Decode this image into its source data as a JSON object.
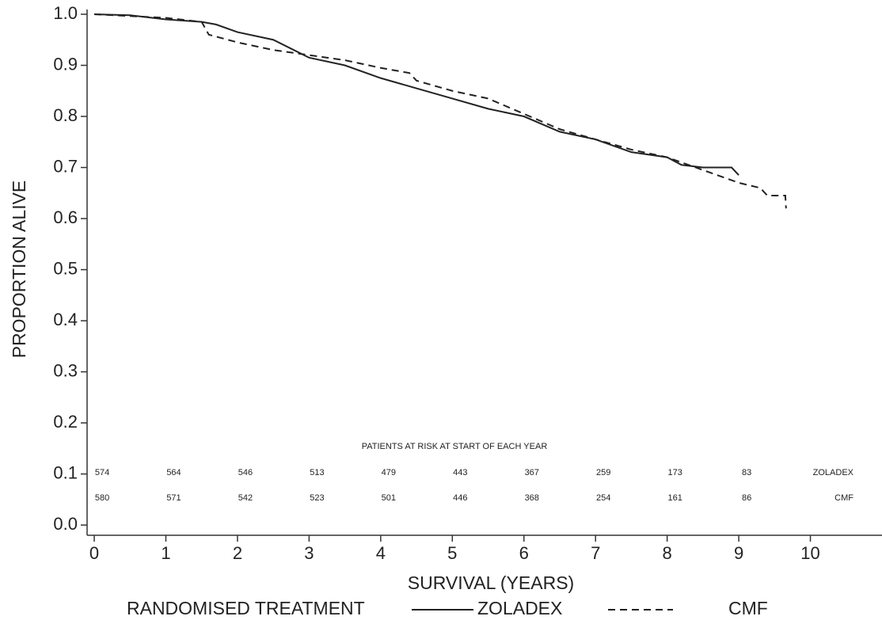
{
  "chart_data": {
    "type": "line",
    "x_label": "SURVIVAL (YEARS)",
    "y_label": "PROPORTION ALIVE",
    "xlim": [
      -0.1,
      11
    ],
    "ylim": [
      -0.02,
      1.0
    ],
    "xticks": [
      0,
      1,
      2,
      3,
      4,
      5,
      6,
      7,
      8,
      9,
      10
    ],
    "yticks": [
      {
        "value": 0,
        "label": "0.0"
      },
      0.1,
      0.2,
      0.3,
      0.4,
      0.5,
      0.6,
      0.7,
      0.8,
      0.9,
      {
        "value": 1,
        "label": "1.0"
      }
    ],
    "legend_title": "RANDOMISED TREATMENT",
    "series": [
      {
        "name": "ZOLADEX",
        "color": "#222222",
        "dashed": false,
        "x": [
          0,
          0.5,
          1,
          1.5,
          1.7,
          2,
          2.5,
          3,
          3.5,
          4,
          4.5,
          5,
          5.5,
          6,
          6.5,
          7,
          7.5,
          8,
          8.2,
          8.5,
          8.9,
          9.0
        ],
        "values": [
          1.0,
          0.998,
          0.99,
          0.985,
          0.98,
          0.965,
          0.95,
          0.915,
          0.9,
          0.875,
          0.855,
          0.835,
          0.815,
          0.8,
          0.77,
          0.755,
          0.73,
          0.72,
          0.705,
          0.7,
          0.7,
          0.685
        ]
      },
      {
        "name": "CMF",
        "color": "#222222",
        "dashed": true,
        "x": [
          0,
          1,
          1.5,
          1.6,
          2,
          2.5,
          3,
          3.5,
          4,
          4.4,
          4.5,
          5,
          5.5,
          6,
          6.5,
          7,
          7.5,
          8,
          8.3,
          8.6,
          8.8,
          9.0,
          9.3,
          9.4,
          9.65,
          9.66
        ],
        "values": [
          1.0,
          0.993,
          0.985,
          0.96,
          0.945,
          0.93,
          0.92,
          0.91,
          0.895,
          0.885,
          0.87,
          0.85,
          0.835,
          0.805,
          0.775,
          0.755,
          0.735,
          0.72,
          0.705,
          0.69,
          0.68,
          0.67,
          0.66,
          0.645,
          0.645,
          0.62
        ]
      }
    ],
    "at_risk": {
      "title": "PATIENTS AT RISK AT START OF EACH YEAR",
      "rows": [
        {
          "name": "ZOLADEX",
          "values": [
            "574",
            "564",
            "546",
            "513",
            "479",
            "443",
            "367",
            "259",
            "173",
            "83"
          ]
        },
        {
          "name": "CMF",
          "values": [
            "580",
            "571",
            "542",
            "523",
            "501",
            "446",
            "368",
            "254",
            "161",
            "86"
          ]
        }
      ]
    }
  }
}
